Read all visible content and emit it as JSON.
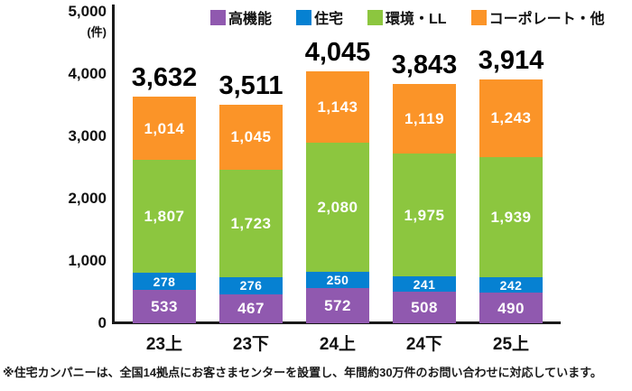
{
  "chart_data": {
    "type": "bar",
    "stacked": true,
    "unit_label": "(件)",
    "grid": false,
    "legend_position": "top",
    "y_axis": {
      "min": 0,
      "max": 5000,
      "tick_labels": [
        "5,000",
        "4,000",
        "3,000",
        "2,000",
        "1,000",
        "0"
      ]
    },
    "categories": [
      "23上",
      "23下",
      "24上",
      "24下",
      "25上"
    ],
    "series": [
      {
        "name": "高機能",
        "color": "#9059AF",
        "values": [
          533,
          467,
          572,
          508,
          490
        ]
      },
      {
        "name": "住宅",
        "color": "#0681D2",
        "values": [
          278,
          276,
          250,
          241,
          242
        ]
      },
      {
        "name": "環境・LL",
        "color": "#8CC63F",
        "values": [
          1807,
          1723,
          2080,
          1975,
          1939
        ]
      },
      {
        "name": "コーポレート・他",
        "color": "#FB9428",
        "values": [
          1014,
          1045,
          1143,
          1119,
          1243
        ]
      }
    ],
    "totals_displayed": [
      "3,632",
      "3,511",
      "4,045",
      "3,843",
      "3,914"
    ]
  },
  "footnote": "※住宅カンパニーは、全国14拠点にお客さまセンターを設置し、年間約30万件のお問い合わせに対応しています。",
  "colors": {
    "background": "#ffffff",
    "axis": "#1a1a1a",
    "text": "#111111",
    "segment_label": "#ffffff"
  }
}
